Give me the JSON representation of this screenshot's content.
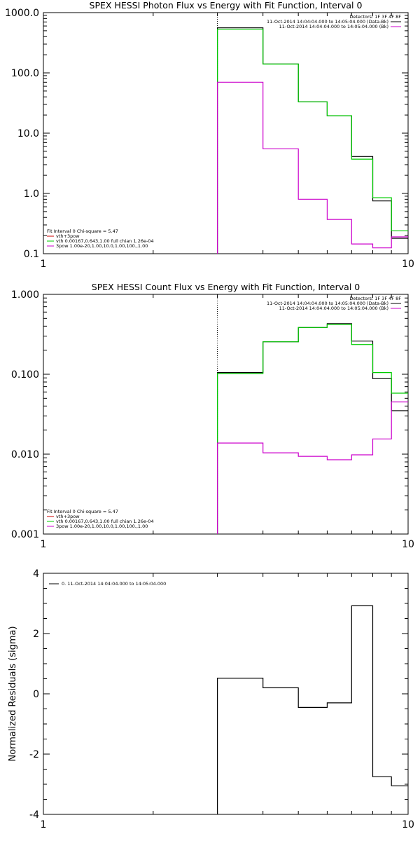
{
  "chart_data": [
    {
      "type": "line",
      "title": "SPEX HESSI Photon Flux vs Energy with Fit Function, Interval 0",
      "xlabel": "",
      "ylabel": "",
      "xscale": "log",
      "yscale": "log",
      "xlim": [
        1,
        10
      ],
      "ylim": [
        0.1,
        1000
      ],
      "x_tick_labels": [
        "1",
        "10"
      ],
      "y_tick_labels": [
        "0.1",
        "1.0",
        "10.0",
        "100.0",
        "1000.0"
      ],
      "y_tick_values": [
        0.1,
        1,
        10,
        100,
        1000
      ],
      "info": [
        "Detectors: 1F 3F 4F 8F",
        "11-Oct-2014 14:04:04.000 to 14:05:04.000 (Data-Bk)",
        "11-Oct-2014 14:04:04.000 to 14:05:04.000 (Bk)"
      ],
      "legend": [
        "Fit Interval 0   Chi-square = 5.47",
        "vth+3pow",
        "vth 0.00167,0.643,1.00  full chian 1.26e-04",
        "3pow 1.00e-20,1.00,10.0,1.00,100.,1.00"
      ],
      "marker_x": 3,
      "edges": [
        3,
        4,
        5,
        6,
        7,
        8,
        9,
        10
      ],
      "series": [
        {
          "name": "Data-Bk",
          "color": "#000000",
          "values": [
            560,
            140,
            33,
            19.5,
            4.1,
            0.75,
            0.18
          ]
        },
        {
          "name": "vth+3pow",
          "color": "#00cc00",
          "values": [
            530,
            140,
            33,
            19.5,
            3.7,
            0.85,
            0.24
          ]
        },
        {
          "name": "Bk",
          "color": "#cc00cc",
          "values": [
            70,
            5.5,
            0.8,
            0.37,
            0.145,
            0.125,
            0.19
          ]
        }
      ]
    },
    {
      "type": "line",
      "title": "SPEX HESSI Count Flux vs Energy with Fit Function, Interval 0",
      "xlabel": "",
      "ylabel": "",
      "xscale": "log",
      "yscale": "log",
      "xlim": [
        1,
        10
      ],
      "ylim": [
        0.001,
        1
      ],
      "x_tick_labels": [
        "1",
        "10"
      ],
      "y_tick_labels": [
        "0.001",
        "0.010",
        "0.100",
        "1.000"
      ],
      "y_tick_values": [
        0.001,
        0.01,
        0.1,
        1
      ],
      "info": [
        "Detectors: 1F 3F 4F 8F",
        "11-Oct-2014 14:04:04.000 to 14:05:04.000 (Data-Bk)",
        "11-Oct-2014 14:04:04.000 to 14:05:04.000 (Bk)"
      ],
      "legend": [
        "Fit Interval 0   Chi-square = 5.47",
        "vth+3pow",
        "vth 0.00167,0.643,1.00  full chian 1.26e-04",
        "3pow 1.00e-20,1.00,10.0,1.00,100.,1.00"
      ],
      "marker_x": 3,
      "edges": [
        3,
        4,
        5,
        6,
        7,
        8,
        9,
        10
      ],
      "series": [
        {
          "name": "Data-Bk",
          "color": "#000000",
          "values": [
            0.105,
            0.255,
            0.385,
            0.43,
            0.26,
            0.088,
            0.035
          ]
        },
        {
          "name": "vth+3pow",
          "color": "#00cc00",
          "values": [
            0.102,
            0.255,
            0.385,
            0.42,
            0.235,
            0.105,
            0.058
          ]
        },
        {
          "name": "Bk",
          "color": "#cc00cc",
          "values": [
            0.0138,
            0.0104,
            0.0094,
            0.0085,
            0.0098,
            0.0155,
            0.045
          ]
        }
      ]
    },
    {
      "type": "line",
      "title": "",
      "xlabel": "",
      "ylabel": "Normalized Residuals (sigma)",
      "xscale": "log",
      "yscale": "linear",
      "xlim": [
        1,
        10
      ],
      "ylim": [
        -4,
        4
      ],
      "x_tick_labels": [
        "1",
        "10"
      ],
      "y_tick_labels": [
        "-4",
        "-2",
        "0",
        "2",
        "4"
      ],
      "y_tick_values": [
        -4,
        -2,
        0,
        2,
        4
      ],
      "legend": [
        "0. 11-Oct-2014 14:04:04.000 to 14:05:04.000"
      ],
      "edges": [
        3,
        4,
        5,
        6,
        7,
        8,
        9,
        10
      ],
      "series": [
        {
          "name": "0. 11-Oct-2014 14:04:04.000 to 14:05:04.000",
          "color": "#000000",
          "values": [
            0.52,
            0.2,
            -0.45,
            -0.3,
            2.92,
            -2.75,
            -3.05
          ]
        }
      ]
    }
  ]
}
